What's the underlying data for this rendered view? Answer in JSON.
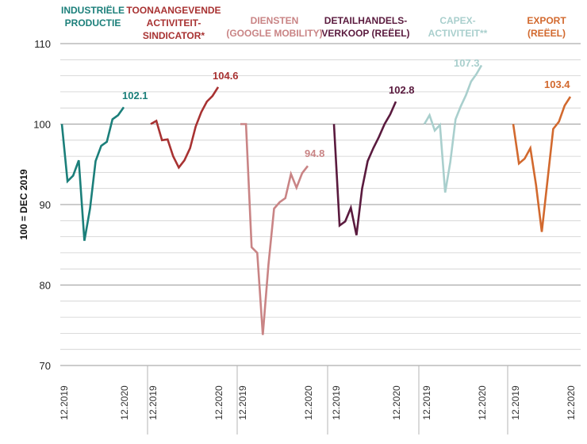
{
  "chart_data": {
    "type": "line",
    "ylabel": "100 = DEC 2019",
    "ylim": [
      70,
      110
    ],
    "yticks": [
      70,
      80,
      90,
      100,
      110
    ],
    "grid": true,
    "panels": [
      {
        "title_lines": [
          "INDUSTRIËLE",
          "PRODUCTIE"
        ],
        "color": "#1b7f7a",
        "x_labels": [
          "12.2019",
          "12.2020"
        ],
        "values": [
          100,
          92.9,
          93.6,
          95.5,
          85.5,
          89.5,
          95.4,
          97.3,
          97.8,
          100.6,
          101.1,
          102.1
        ],
        "end_label": "102.1"
      },
      {
        "title_lines": [
          "TOONAANGEVENDE",
          "ACTIVITEIT-",
          "SINDICATOR*"
        ],
        "color": "#a83232",
        "x_labels": [
          "12.2019",
          "12.2020"
        ],
        "values": [
          100,
          100.4,
          98.0,
          98.1,
          96.0,
          94.6,
          95.5,
          97.0,
          99.7,
          101.5,
          102.8,
          103.5,
          104.6
        ],
        "end_label": "104.6"
      },
      {
        "title_lines": [
          "DIENSTEN",
          "(GOOGLE MOBILITY)"
        ],
        "color": "#c98485",
        "x_labels": [
          "12.2019",
          "12.2020"
        ],
        "values": [
          100,
          100,
          84.7,
          84.0,
          73.8,
          82.5,
          89.5,
          90.3,
          90.8,
          93.8,
          92.1,
          93.9,
          94.8
        ],
        "end_label": "94.8"
      },
      {
        "title_lines": [
          "DETAILHANDELS-",
          "VERKOOP (REËEL)"
        ],
        "color": "#5a1a3e",
        "x_labels": [
          "12.2019",
          "12.2020"
        ],
        "values": [
          100,
          87.4,
          87.9,
          89.6,
          86.2,
          92.0,
          95.4,
          97.0,
          98.4,
          100.0,
          101.2,
          102.8
        ],
        "end_label": "102.8"
      },
      {
        "title_lines": [
          "CAPEX-",
          "ACTIVITEIT**"
        ],
        "color": "#a9cfcd",
        "x_labels": [
          "12.2019",
          "12.2020"
        ],
        "values": [
          100,
          101.1,
          99.2,
          99.9,
          91.5,
          95.3,
          100.6,
          102.2,
          103.6,
          105.3,
          106.2,
          107.3
        ],
        "end_label": "107.3"
      },
      {
        "title_lines": [
          "EXPORT",
          "(REËEL)"
        ],
        "color": "#d2692e",
        "x_labels": [
          "12.2019",
          "12.2020"
        ],
        "values": [
          100,
          95.1,
          95.7,
          97.0,
          92.4,
          86.6,
          93.0,
          99.4,
          100.3,
          102.3,
          103.4
        ],
        "end_label": "103.4"
      }
    ]
  }
}
